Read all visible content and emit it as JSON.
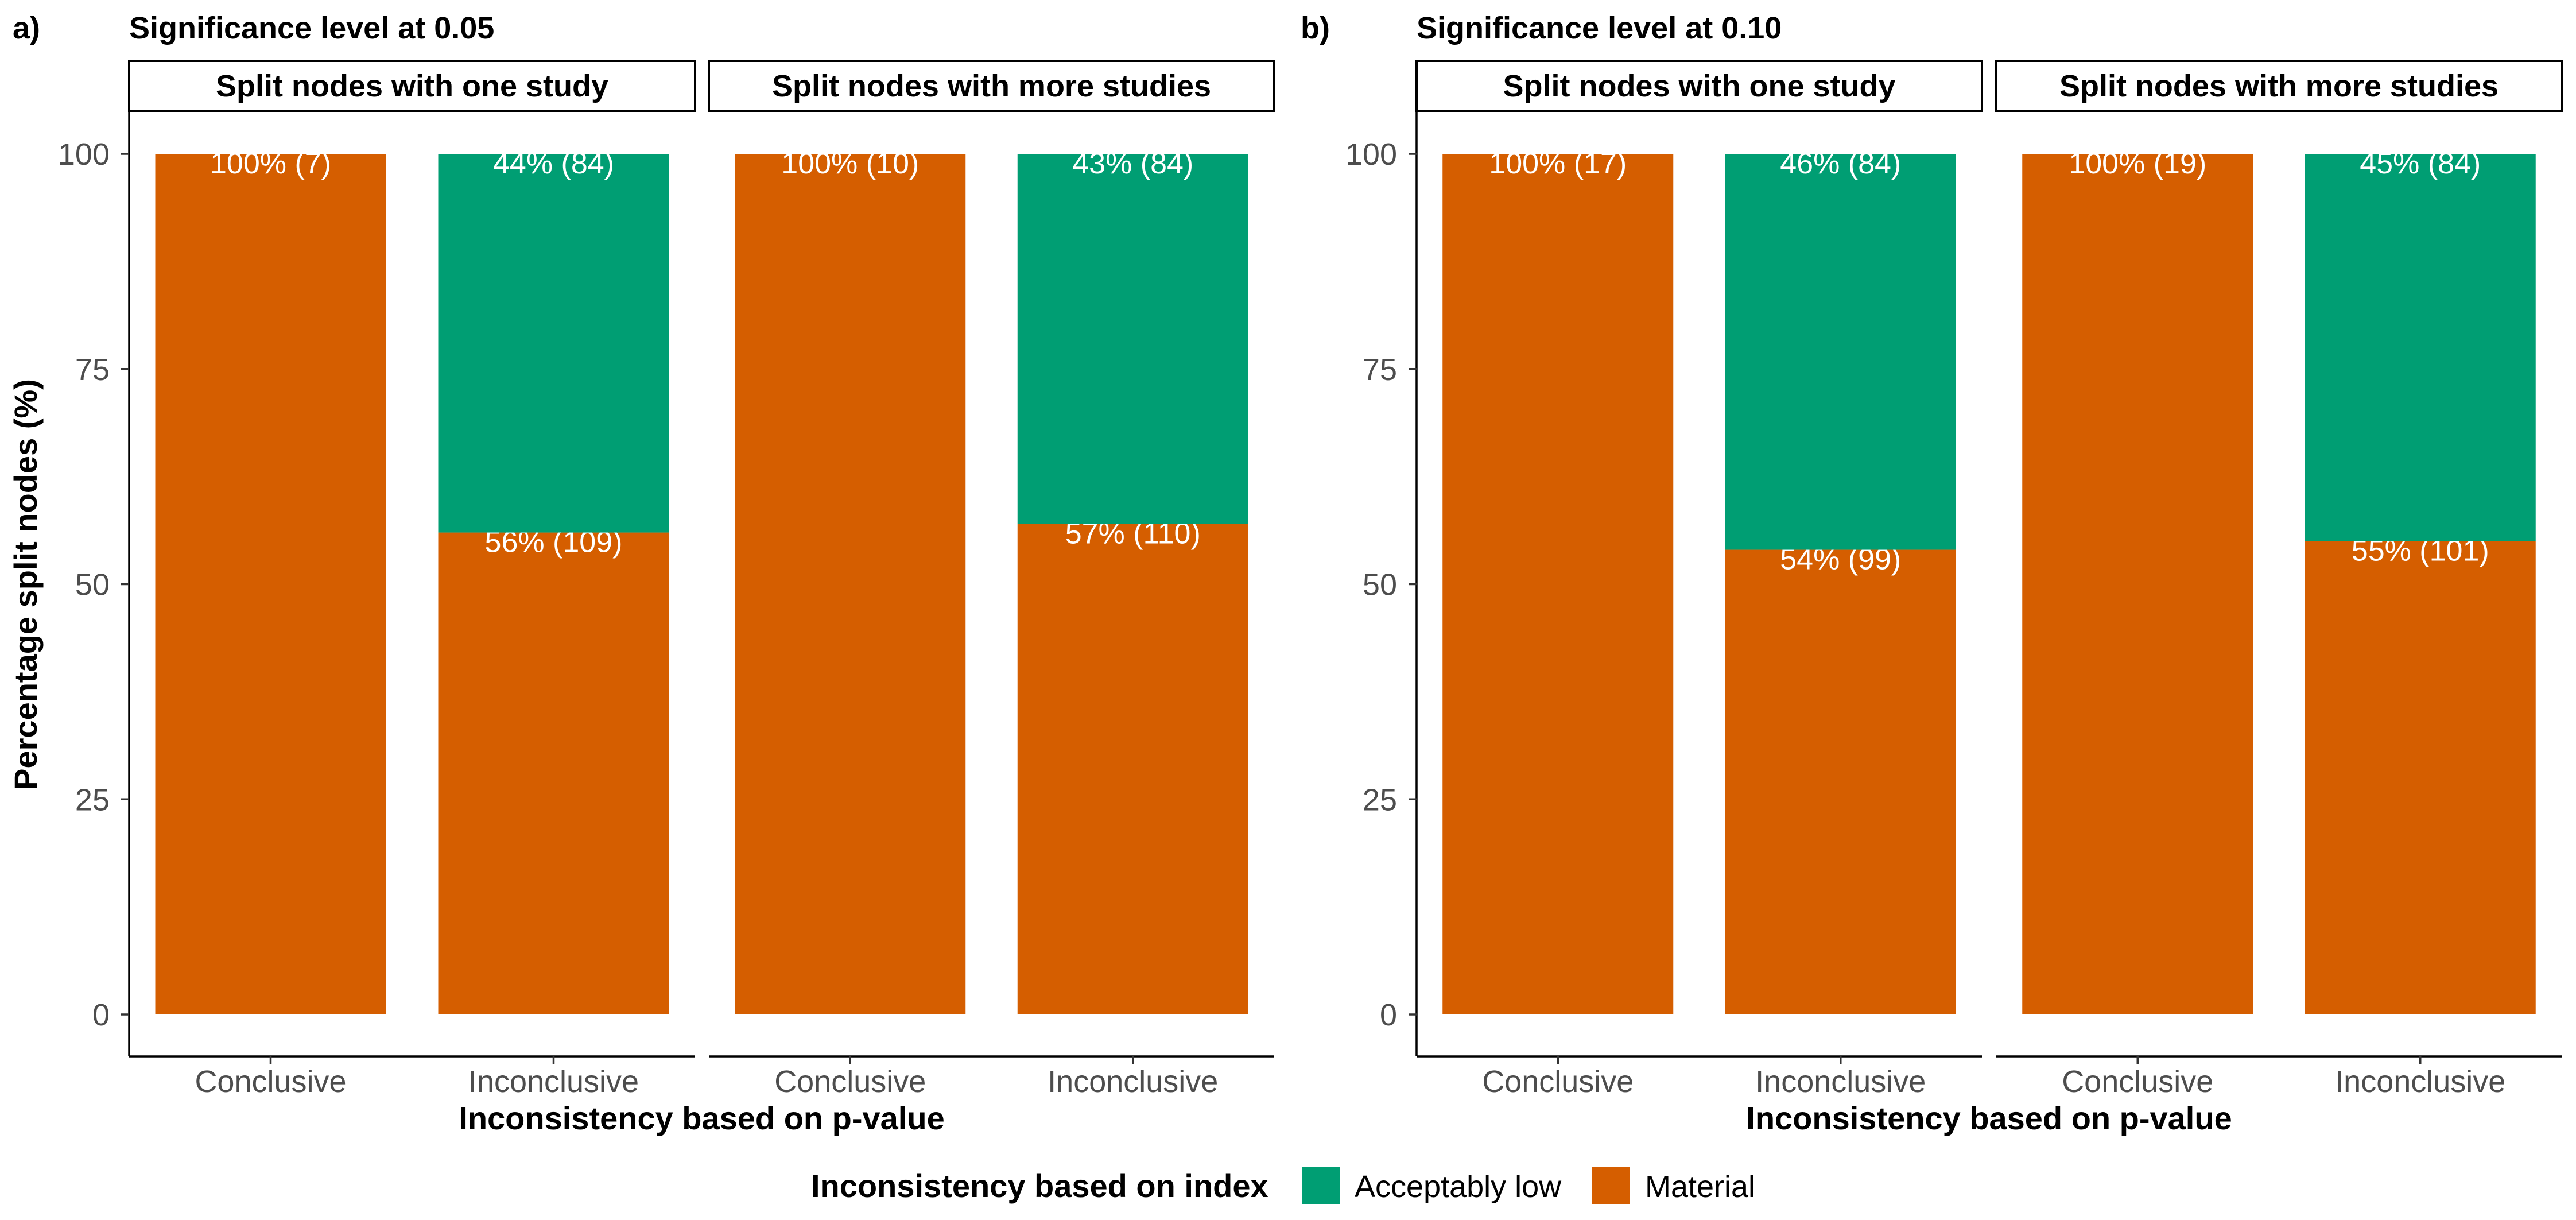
{
  "chart_data": [
    {
      "type": "bar",
      "stacked": true,
      "panel_tag": "a)",
      "title": "Significance level at 0.05",
      "xlabel": "Inconsistency based on p-value",
      "ylabel": "Percentage split nodes (%)",
      "ylim": [
        0,
        100
      ],
      "yticks": [
        0,
        25,
        50,
        75,
        100
      ],
      "grid": false,
      "facets": [
        {
          "strip": "Split nodes with one study",
          "categories": [
            "Conclusive",
            "Inconclusive"
          ],
          "series": [
            {
              "name": "Material",
              "values": [
                100,
                56
              ],
              "labels": [
                "100% (7)",
                "56% (109)"
              ]
            },
            {
              "name": "Acceptably low",
              "values": [
                0,
                44
              ],
              "labels": [
                "",
                "44% (84)"
              ]
            }
          ]
        },
        {
          "strip": "Split nodes with more studies",
          "categories": [
            "Conclusive",
            "Inconclusive"
          ],
          "series": [
            {
              "name": "Material",
              "values": [
                100,
                57
              ],
              "labels": [
                "100% (10)",
                "57% (110)"
              ]
            },
            {
              "name": "Acceptably low",
              "values": [
                0,
                43
              ],
              "labels": [
                "",
                "43% (84)"
              ]
            }
          ]
        }
      ]
    },
    {
      "type": "bar",
      "stacked": true,
      "panel_tag": "b)",
      "title": "Significance level at 0.10",
      "xlabel": "Inconsistency based on p-value",
      "ylabel": "",
      "ylim": [
        0,
        100
      ],
      "yticks": [
        0,
        25,
        50,
        75,
        100
      ],
      "grid": false,
      "facets": [
        {
          "strip": "Split nodes with one study",
          "categories": [
            "Conclusive",
            "Inconclusive"
          ],
          "series": [
            {
              "name": "Material",
              "values": [
                100,
                54
              ],
              "labels": [
                "100% (17)",
                "54% (99)"
              ]
            },
            {
              "name": "Acceptably low",
              "values": [
                0,
                46
              ],
              "labels": [
                "",
                "46% (84)"
              ]
            }
          ]
        },
        {
          "strip": "Split nodes with more studies",
          "categories": [
            "Conclusive",
            "Inconclusive"
          ],
          "series": [
            {
              "name": "Material",
              "values": [
                100,
                55
              ],
              "labels": [
                "100% (19)",
                "55% (101)"
              ]
            },
            {
              "name": "Acceptably low",
              "values": [
                0,
                45
              ],
              "labels": [
                "",
                "45% (84)"
              ]
            }
          ]
        }
      ]
    }
  ],
  "legend": {
    "title": "Inconsistency based on index",
    "placement": "bottom",
    "items": [
      {
        "name": "Acceptably low",
        "color": "#009E73"
      },
      {
        "name": "Material",
        "color": "#D55E00"
      }
    ]
  },
  "colors": {
    "Material": "#D55E00",
    "Acceptably low": "#009E73"
  }
}
